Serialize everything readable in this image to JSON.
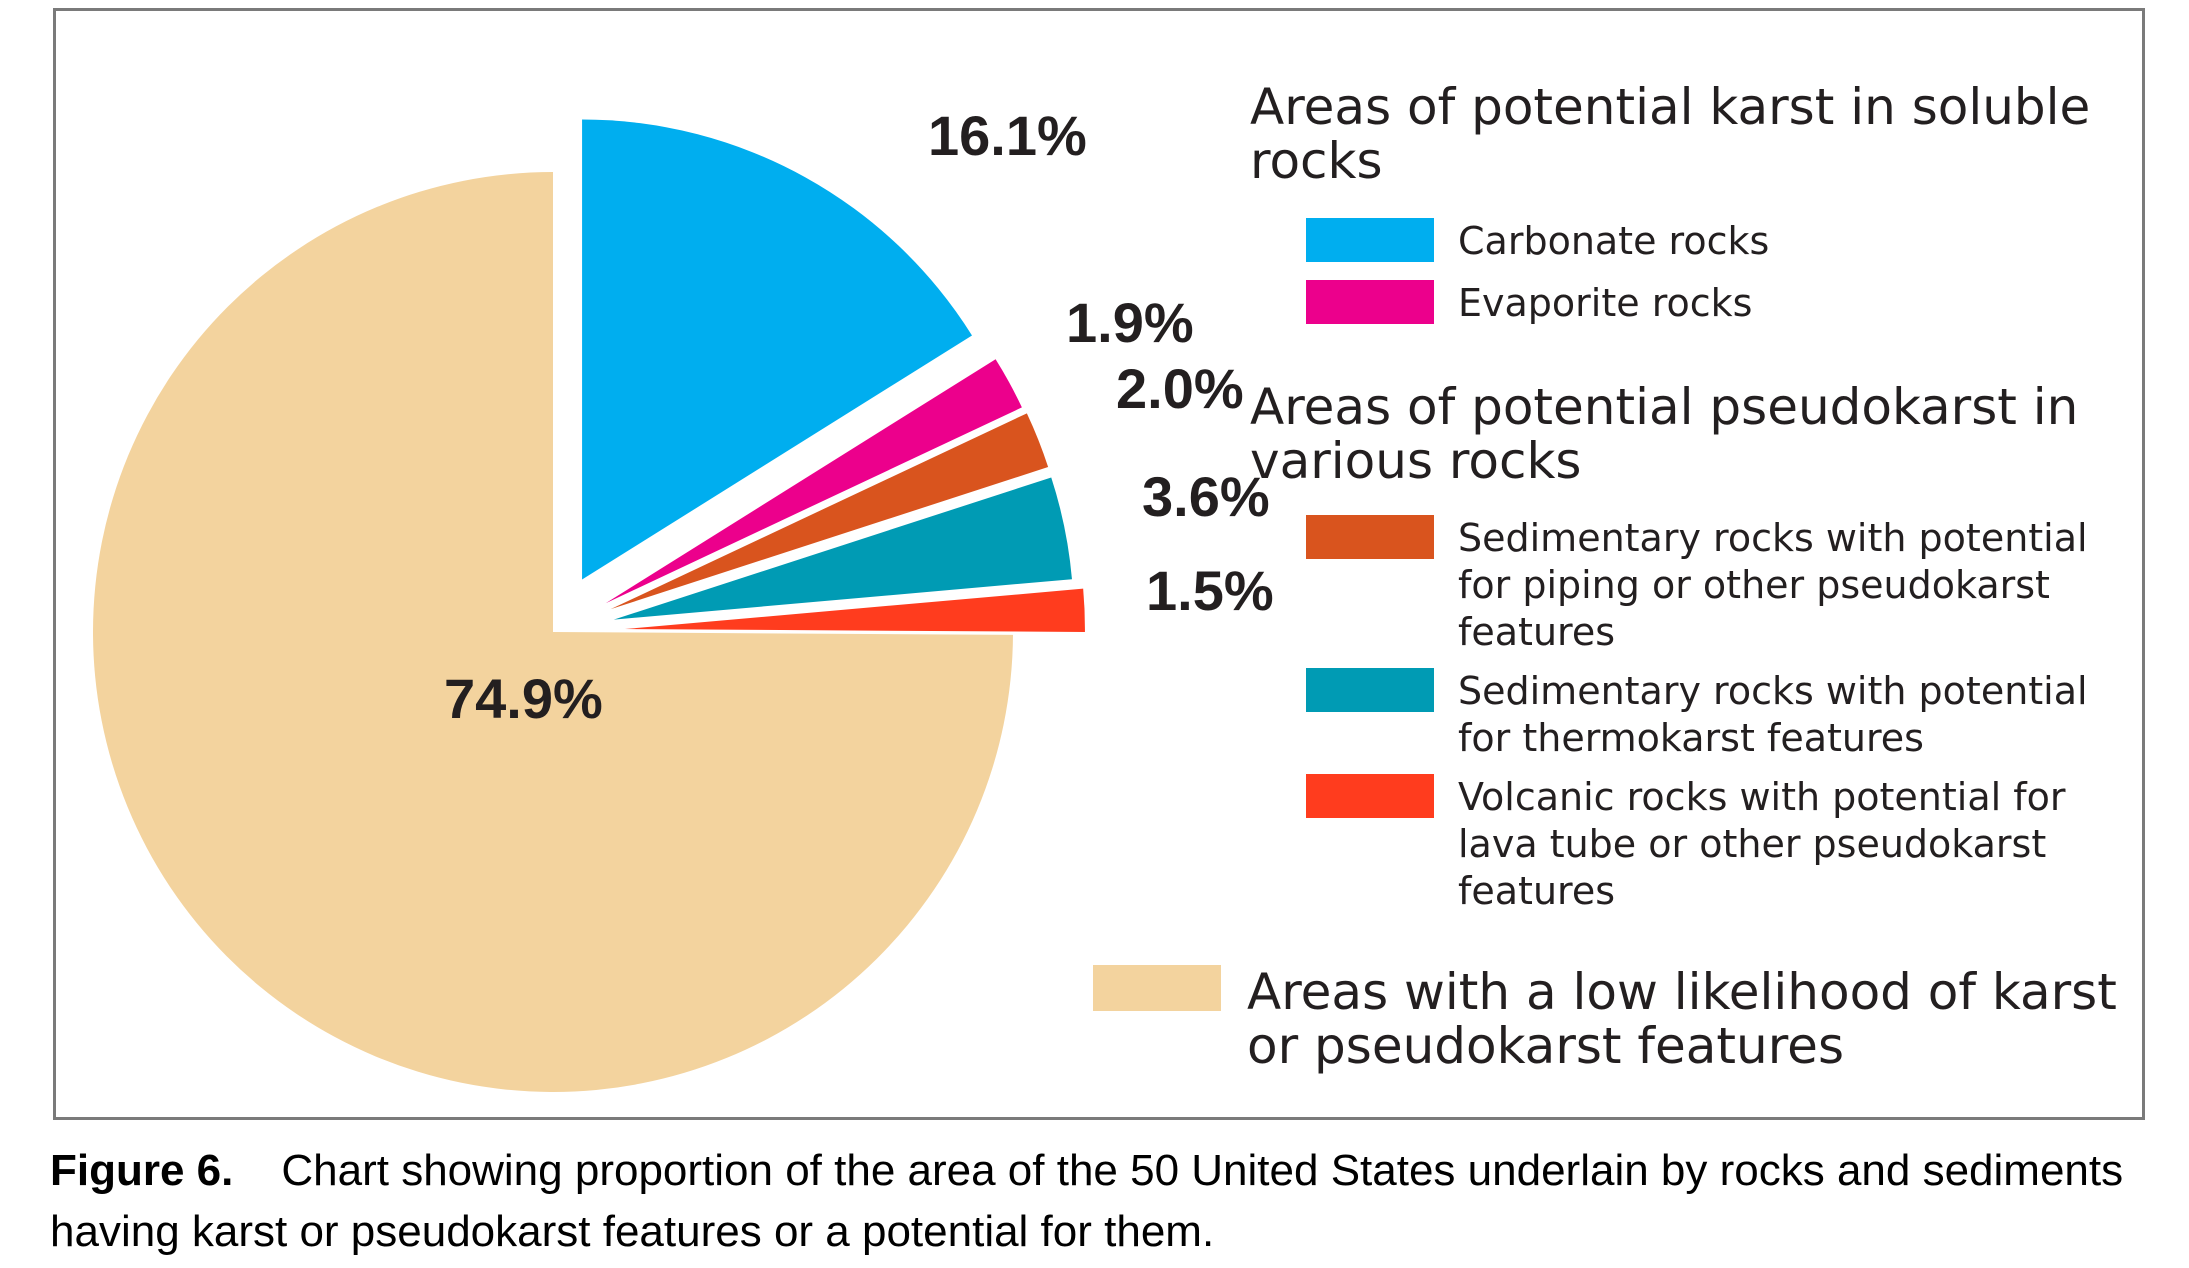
{
  "chart_data": {
    "type": "pie",
    "slices": [
      {
        "label": "Carbonate rocks",
        "value": 16.1,
        "display": "16.1%",
        "color": "#00aeef"
      },
      {
        "label": "Evaporite rocks",
        "value": 1.9,
        "display": "1.9%",
        "color": "#ec008c"
      },
      {
        "label": "Sedimentary rocks with potential for piping or other pseudokarst features",
        "value": 2.0,
        "display": "2.0%",
        "color": "#d9541e"
      },
      {
        "label": "Sedimentary rocks with potential for thermokarst features",
        "value": 3.6,
        "display": "3.6%",
        "color": "#009bb4"
      },
      {
        "label": "Volcanic rocks with potential for lava tube or other pseudokarst features",
        "value": 1.5,
        "display": "1.5%",
        "color": "#ff3c1e"
      },
      {
        "label": "Areas with a low likelihood of karst or pseudokarst features",
        "value": 74.9,
        "display": "74.9%",
        "color": "#f3d39e"
      }
    ]
  },
  "legend": {
    "karst_heading": "Areas of potential karst in soluble rocks",
    "karst_items": [
      {
        "label": "Carbonate rocks",
        "color": "#00aeef"
      },
      {
        "label": "Evaporite rocks",
        "color": "#ec008c"
      }
    ],
    "pseudokarst_heading": "Areas of potential pseudokarst in various rocks",
    "pseudokarst_items": [
      {
        "label": "Sedimentary rocks with potential for piping or other pseudokarst features",
        "color": "#d9541e"
      },
      {
        "label": "Sedimentary rocks with potential for thermokarst features",
        "color": "#009bb4"
      },
      {
        "label": "Volcanic rocks with potential for lava tube or other pseudokarst features",
        "color": "#ff3c1e"
      }
    ],
    "low_item": {
      "label": "Areas with a low likelihood of karst or pseudokarst features",
      "color": "#f3d39e"
    }
  },
  "caption": {
    "figure_number": "Figure 6.",
    "text": "Chart showing proportion of the area of the 50 United States underlain by rocks and sediments having karst or pseudokarst features or a potential for them."
  }
}
